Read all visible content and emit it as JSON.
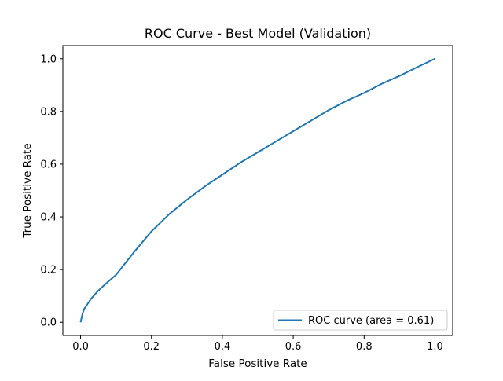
{
  "chart_data": {
    "type": "line",
    "title": "ROC Curve - Best Model (Validation)",
    "xlabel": "False Positive Rate",
    "ylabel": "True Positive Rate",
    "xlim": [
      -0.05,
      1.05
    ],
    "ylim": [
      -0.05,
      1.05
    ],
    "xticks": [
      0.0,
      0.2,
      0.4,
      0.6,
      0.8,
      1.0
    ],
    "yticks": [
      0.0,
      0.2,
      0.4,
      0.6,
      0.8,
      1.0
    ],
    "xtick_labels": [
      "0.0",
      "0.2",
      "0.4",
      "0.6",
      "0.8",
      "1.0"
    ],
    "ytick_labels": [
      "0.0",
      "0.2",
      "0.4",
      "0.6",
      "0.8",
      "1.0"
    ],
    "grid": false,
    "legend_position": "lower-right",
    "series": [
      {
        "name": "ROC curve (area = 0.61)",
        "color": "#1f77b4",
        "x": [
          0.0,
          0.005,
          0.01,
          0.02,
          0.03,
          0.05,
          0.07,
          0.1,
          0.15,
          0.2,
          0.25,
          0.3,
          0.35,
          0.4,
          0.45,
          0.5,
          0.55,
          0.6,
          0.65,
          0.7,
          0.75,
          0.8,
          0.85,
          0.9,
          0.95,
          1.0
        ],
        "y": [
          0.0,
          0.03,
          0.05,
          0.07,
          0.09,
          0.12,
          0.145,
          0.18,
          0.265,
          0.345,
          0.41,
          0.465,
          0.515,
          0.56,
          0.605,
          0.645,
          0.685,
          0.725,
          0.765,
          0.805,
          0.84,
          0.87,
          0.905,
          0.935,
          0.968,
          1.0
        ]
      }
    ]
  }
}
